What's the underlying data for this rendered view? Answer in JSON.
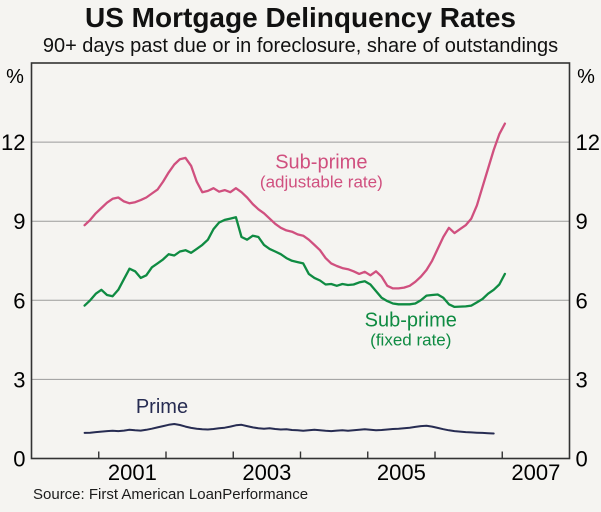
{
  "header": {
    "title": "US Mortgage Delinquency Rates",
    "subtitle": "90+ days past due or in foreclosure, share of outstandings"
  },
  "footer": {
    "source": "Source: First American LoanPerformance"
  },
  "chart_data": {
    "type": "line",
    "title": "US Mortgage Delinquency Rates",
    "subtitle": "90+ days past due or in foreclosure, share of outstandings",
    "source": "Source: First American LoanPerformance",
    "y_unit": "%",
    "x_domain": [
      2000,
      2008
    ],
    "y_domain": [
      0,
      15
    ],
    "y_ticks": [
      0,
      3,
      6,
      9,
      12
    ],
    "x_ticks": [
      2001,
      2002,
      2003,
      2004,
      2005,
      2006,
      2007
    ],
    "x_tick_labels": [
      {
        "text": "2001",
        "x": 2001.5
      },
      {
        "text": "2003",
        "x": 2003.5
      },
      {
        "text": "2005",
        "x": 2005.5
      },
      {
        "text": "2007",
        "x": 2007.5
      }
    ],
    "grid": "horizontal-only",
    "legend": "inline-annotations",
    "frame": true,
    "colors": {
      "frame": "#333333",
      "grid": "#9b9b9b",
      "text": "#000000",
      "background": "#f5f4f1"
    },
    "x_start": 2000.79,
    "x_step_years": 0.0833333,
    "series": [
      {
        "name": "Sub-prime (adjustable rate)",
        "color": "#d0507f",
        "width": 2.3,
        "label": {
          "lines": [
            "Sub-prime",
            "(adjustable rate)"
          ],
          "x": 2004.31,
          "y": 11.0
        },
        "values": [
          8.85,
          9.05,
          9.3,
          9.5,
          9.7,
          9.85,
          9.9,
          9.75,
          9.68,
          9.72,
          9.8,
          9.9,
          10.05,
          10.2,
          10.5,
          10.85,
          11.15,
          11.35,
          11.4,
          11.1,
          10.5,
          10.1,
          10.15,
          10.25,
          10.12,
          10.18,
          10.1,
          10.25,
          10.1,
          9.9,
          9.65,
          9.45,
          9.3,
          9.1,
          8.9,
          8.75,
          8.65,
          8.6,
          8.5,
          8.45,
          8.3,
          8.1,
          7.9,
          7.6,
          7.4,
          7.3,
          7.22,
          7.18,
          7.1,
          7.0,
          7.08,
          6.95,
          7.1,
          6.9,
          6.55,
          6.45,
          6.45,
          6.48,
          6.55,
          6.7,
          6.9,
          7.15,
          7.5,
          7.95,
          8.4,
          8.75,
          8.55,
          8.7,
          8.85,
          9.1,
          9.6,
          10.3,
          11.0,
          11.7,
          12.3,
          12.7
        ]
      },
      {
        "name": "Sub-prime (fixed rate)",
        "color": "#0f8b42",
        "width": 2.3,
        "label": {
          "lines": [
            "Sub-prime",
            "(fixed rate)"
          ],
          "x": 2005.64,
          "y": 5.0
        },
        "values": [
          5.8,
          6.0,
          6.25,
          6.4,
          6.2,
          6.15,
          6.4,
          6.8,
          7.2,
          7.1,
          6.85,
          6.95,
          7.25,
          7.4,
          7.55,
          7.75,
          7.7,
          7.85,
          7.9,
          7.8,
          7.95,
          8.1,
          8.3,
          8.7,
          8.95,
          9.05,
          9.1,
          9.15,
          8.4,
          8.3,
          8.45,
          8.4,
          8.1,
          7.95,
          7.85,
          7.75,
          7.6,
          7.5,
          7.45,
          7.4,
          7.0,
          6.85,
          6.75,
          6.6,
          6.62,
          6.55,
          6.62,
          6.58,
          6.6,
          6.68,
          6.72,
          6.6,
          6.35,
          6.1,
          5.97,
          5.88,
          5.85,
          5.85,
          5.85,
          5.88,
          6.0,
          6.18,
          6.2,
          6.22,
          6.1,
          5.85,
          5.75,
          5.76,
          5.77,
          5.8,
          5.92,
          6.05,
          6.25,
          6.4,
          6.6,
          7.0
        ]
      },
      {
        "name": "Prime",
        "color": "#272c52",
        "width": 2.0,
        "label": {
          "lines": [
            "Prime"
          ],
          "x": 2001.94,
          "y": 1.72
        },
        "values": [
          0.97,
          0.98,
          1.0,
          1.02,
          1.04,
          1.05,
          1.04,
          1.06,
          1.09,
          1.07,
          1.06,
          1.09,
          1.13,
          1.18,
          1.23,
          1.28,
          1.31,
          1.27,
          1.21,
          1.16,
          1.13,
          1.11,
          1.1,
          1.12,
          1.15,
          1.17,
          1.21,
          1.26,
          1.28,
          1.23,
          1.18,
          1.15,
          1.13,
          1.15,
          1.12,
          1.1,
          1.11,
          1.08,
          1.07,
          1.05,
          1.07,
          1.09,
          1.07,
          1.05,
          1.04,
          1.06,
          1.07,
          1.05,
          1.07,
          1.09,
          1.11,
          1.09,
          1.07,
          1.08,
          1.1,
          1.12,
          1.13,
          1.15,
          1.17,
          1.2,
          1.23,
          1.24,
          1.21,
          1.16,
          1.11,
          1.07,
          1.04,
          1.02,
          1.0,
          0.99,
          0.98,
          0.97,
          0.96,
          0.95
        ]
      }
    ]
  }
}
